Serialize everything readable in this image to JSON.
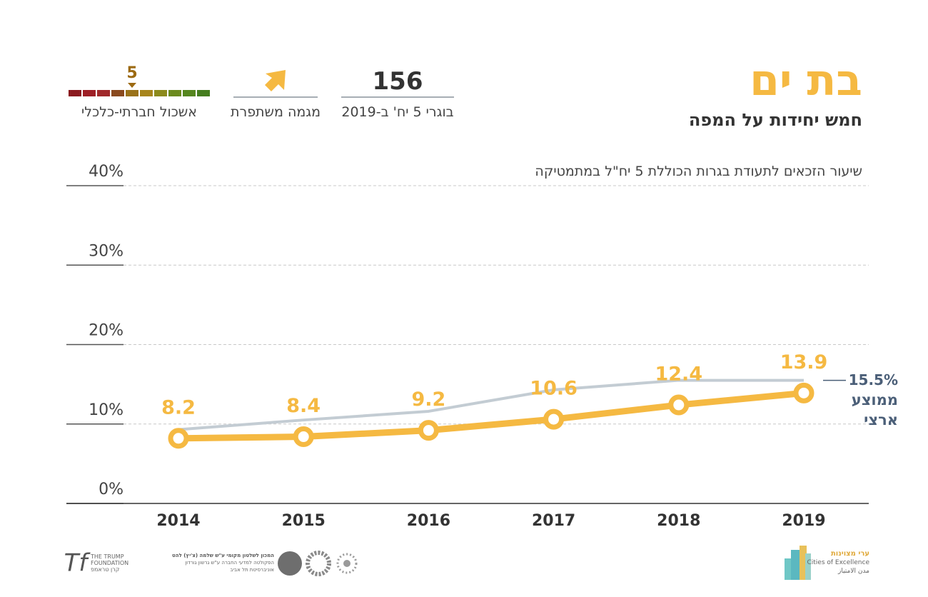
{
  "header": {
    "title": "בת ים",
    "subtitle": "חמש יחידות על המפה",
    "graduates": {
      "value": 156,
      "label": "בוגרי 5 יח' ב-2019"
    },
    "trend": {
      "label": "מגמה משתפרת"
    },
    "cluster": {
      "value": 5,
      "label": "אשכול חברתי-כלכלי",
      "colors": [
        "#8b1a1f",
        "#9e1f26",
        "#a0282a",
        "#8a4a1e",
        "#9a7219",
        "#a7851c",
        "#8c8a1c",
        "#6b8a1e",
        "#55861f",
        "#457d1f"
      ]
    }
  },
  "chart_data": {
    "type": "line",
    "title": "שיעור הזכאים לתעודת בגרות הכוללת 5 יח\"ל במתמטיקה",
    "categories": [
      "2014",
      "2015",
      "2016",
      "2017",
      "2018",
      "2019"
    ],
    "series": [
      {
        "name": "ממוצע ארצי",
        "color": "#c3ccd3",
        "values": [
          9.3,
          10.5,
          11.6,
          14.3,
          15.5,
          15.5
        ],
        "value_labels": [
          null,
          null,
          null,
          null,
          null,
          "15.5%"
        ]
      },
      {
        "color": "#f5b942",
        "values": [
          8.2,
          8.4,
          9.2,
          10.6,
          12.4,
          13.9
        ]
      }
    ],
    "ylim": [
      0,
      40
    ],
    "yticks": [
      {
        "value": 0,
        "label": "0%"
      },
      {
        "value": 10,
        "label": "10%"
      },
      {
        "value": 20,
        "label": "20%"
      },
      {
        "value": 30,
        "label": "30%"
      },
      {
        "value": 40,
        "label": "40%"
      }
    ],
    "grid": true
  },
  "footer": {
    "left_logo": [
      "THE TRUMP",
      "FOUNDATION",
      "קרן טראמפ"
    ],
    "middle_logo": [
      "המכון לשלטון מקומי ע\"ש שלמה (צ'יץ) להט",
      "הפקולטה למדעי החברה ע\"ש גרשון גורדון",
      "אוניברסיטת תל אביב"
    ],
    "right_logo": [
      "ערי מצוינות",
      "Cities of Excellence",
      "مدن الامتياز"
    ]
  }
}
